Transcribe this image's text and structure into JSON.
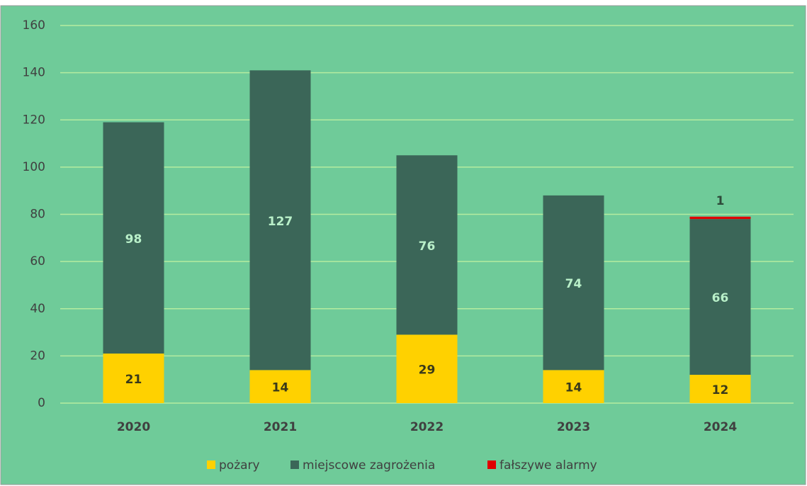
{
  "chart_data": {
    "type": "stacked_bar",
    "categories": [
      "2020",
      "2021",
      "2022",
      "2023",
      "2024"
    ],
    "series": [
      {
        "name": "pożary",
        "color": "#ffd100",
        "values": [
          21,
          14,
          29,
          14,
          12
        ]
      },
      {
        "name": "miejscowe zagrożenia",
        "color": "#3b6658",
        "values": [
          98,
          127,
          76,
          74,
          66
        ]
      },
      {
        "name": "fałszywe alarmy",
        "color": "#e00000",
        "values": [
          0,
          0,
          0,
          0,
          1
        ]
      }
    ],
    "ylim": [
      0,
      160
    ],
    "yticks": [
      0,
      20,
      40,
      60,
      80,
      100,
      120,
      140,
      160
    ],
    "grid": true,
    "legend": "bottom"
  }
}
